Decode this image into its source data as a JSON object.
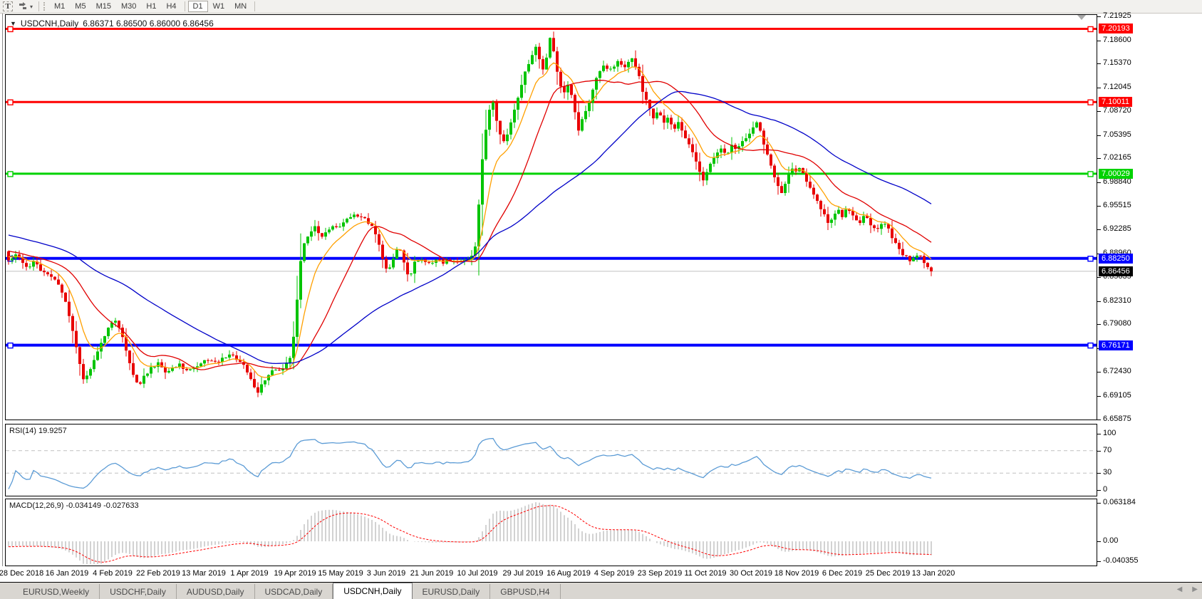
{
  "toolbar": {
    "text_tool_label": "T",
    "timeframes": [
      "M1",
      "M5",
      "M15",
      "M30",
      "H1",
      "H4",
      "D1",
      "W1",
      "MN"
    ],
    "active_timeframe": "D1"
  },
  "chart": {
    "title": "USDCNH,Daily",
    "ohlc_string": "6.86371 6.86500 6.86000 6.86456",
    "open": "6.86371",
    "high": "6.86500",
    "low": "6.86000",
    "close": "6.86456"
  },
  "rsi_panel": {
    "label": "RSI(14) 19.9257",
    "value": 19.9257,
    "period": 14,
    "axis_labels": [
      "100",
      "70",
      "30",
      "0"
    ],
    "guide_levels": [
      70,
      30
    ],
    "range": [
      0,
      100
    ]
  },
  "macd_panel": {
    "label": "MACD(12,26,9) -0.034149 -0.027633",
    "params": "12,26,9",
    "macd_value": -0.034149,
    "signal_value": -0.027633,
    "axis_labels": [
      "0.063184",
      "0.00",
      "-0.040355"
    ],
    "axis_max": 0.063184,
    "axis_min": -0.040355
  },
  "tabs": {
    "items": [
      "EURUSD,Weekly",
      "USDCHF,Daily",
      "AUDUSD,Daily",
      "USDCAD,Daily",
      "USDCNH,Daily",
      "EURUSD,Daily",
      "GBPUSD,H4"
    ],
    "active": "USDCNH,Daily"
  },
  "chart_data": {
    "type": "candlestick",
    "symbol": "USDCNH",
    "timeframe": "Daily",
    "title": "USDCNH,Daily 6.86371 6.86500 6.86000 6.86456",
    "price_axis_ticks": [
      "7.21925",
      "7.18600",
      "7.15370",
      "7.12045",
      "7.08720",
      "7.05395",
      "7.02165",
      "6.98840",
      "6.95515",
      "6.92285",
      "6.88960",
      "6.85635",
      "6.82310",
      "6.79080",
      "6.75755",
      "6.72430",
      "6.69105",
      "6.65875"
    ],
    "price_range": {
      "top": 7.21925,
      "bottom": 6.65875
    },
    "x_axis_labels": [
      "28 Dec 2018",
      "16 Jan 2019",
      "4 Feb 2019",
      "22 Feb 2019",
      "13 Mar 2019",
      "1 Apr 2019",
      "19 Apr 2019",
      "15 May 2019",
      "3 Jun 2019",
      "21 Jun 2019",
      "10 Jul 2019",
      "29 Jul 2019",
      "16 Aug 2019",
      "4 Sep 2019",
      "23 Sep 2019",
      "11 Oct 2019",
      "30 Oct 2019",
      "18 Nov 2019",
      "6 Dec 2019",
      "25 Dec 2019",
      "13 Jan 2020"
    ],
    "levels": [
      {
        "label": "7.20193",
        "price": 7.20193,
        "color": "#ff0000",
        "width": 3
      },
      {
        "label": "7.10011",
        "price": 7.10011,
        "color": "#ff0000",
        "width": 3
      },
      {
        "label": "7.00029",
        "price": 7.00029,
        "color": "#00d200",
        "width": 3
      },
      {
        "label": "6.88250",
        "price": 6.8825,
        "color": "#0000ff",
        "width": 4
      },
      {
        "label": "6.76171",
        "price": 6.76171,
        "color": "#0000ff",
        "width": 4
      }
    ],
    "current_price": {
      "label": "6.86456",
      "value": 6.86456
    },
    "moving_averages": [
      {
        "name": "fast",
        "type": "ema",
        "period": 9,
        "color": "#ffa000"
      },
      {
        "name": "mid",
        "type": "sma",
        "period": 21,
        "color": "#e00000"
      },
      {
        "name": "slow",
        "type": "sma",
        "period": 55,
        "color": "#0000c8"
      }
    ],
    "colors": {
      "up": "#00c400",
      "down": "#e80000",
      "current_line": "#c0c0c0",
      "rsi_line": "#5b9bd5",
      "macd_hist": "#b4b4b4",
      "macd_signal": "#ff0000",
      "guide_dash": "#c0c0c0"
    },
    "close_path_format": "[x_px, price] anchors of daily closes read from chart",
    "close_path": [
      [
        10,
        6.88
      ],
      [
        22,
        6.89
      ],
      [
        34,
        6.868
      ],
      [
        46,
        6.878
      ],
      [
        58,
        6.862
      ],
      [
        70,
        6.858
      ],
      [
        82,
        6.842
      ],
      [
        92,
        6.815
      ],
      [
        100,
        6.782
      ],
      [
        108,
        6.745
      ],
      [
        116,
        6.712
      ],
      [
        124,
        6.728
      ],
      [
        132,
        6.748
      ],
      [
        142,
        6.768
      ],
      [
        152,
        6.79
      ],
      [
        160,
        6.796
      ],
      [
        168,
        6.778
      ],
      [
        176,
        6.752
      ],
      [
        184,
        6.722
      ],
      [
        192,
        6.705
      ],
      [
        200,
        6.718
      ],
      [
        210,
        6.73
      ],
      [
        220,
        6.736
      ],
      [
        230,
        6.722
      ],
      [
        240,
        6.73
      ],
      [
        250,
        6.734
      ],
      [
        258,
        6.726
      ],
      [
        268,
        6.73
      ],
      [
        278,
        6.735
      ],
      [
        288,
        6.742
      ],
      [
        298,
        6.736
      ],
      [
        308,
        6.742
      ],
      [
        318,
        6.748
      ],
      [
        328,
        6.744
      ],
      [
        338,
        6.738
      ],
      [
        346,
        6.724
      ],
      [
        354,
        6.706
      ],
      [
        360,
        6.695
      ],
      [
        368,
        6.712
      ],
      [
        376,
        6.722
      ],
      [
        384,
        6.727
      ],
      [
        392,
        6.729
      ],
      [
        400,
        6.735
      ],
      [
        407,
        6.748
      ],
      [
        413,
        6.8
      ],
      [
        419,
        6.872
      ],
      [
        425,
        6.902
      ],
      [
        432,
        6.915
      ],
      [
        440,
        6.925
      ],
      [
        448,
        6.913
      ],
      [
        456,
        6.92
      ],
      [
        464,
        6.928
      ],
      [
        472,
        6.925
      ],
      [
        480,
        6.934
      ],
      [
        488,
        6.94
      ],
      [
        496,
        6.946
      ],
      [
        504,
        6.94
      ],
      [
        512,
        6.935
      ],
      [
        520,
        6.928
      ],
      [
        528,
        6.908
      ],
      [
        536,
        6.878
      ],
      [
        542,
        6.862
      ],
      [
        550,
        6.884
      ],
      [
        558,
        6.902
      ],
      [
        566,
        6.872
      ],
      [
        572,
        6.856
      ],
      [
        580,
        6.876
      ],
      [
        588,
        6.88
      ],
      [
        596,
        6.875
      ],
      [
        604,
        6.878
      ],
      [
        612,
        6.882
      ],
      [
        620,
        6.877
      ],
      [
        628,
        6.88
      ],
      [
        636,
        6.878
      ],
      [
        644,
        6.881
      ],
      [
        652,
        6.878
      ],
      [
        660,
        6.886
      ],
      [
        666,
        6.9
      ],
      [
        672,
        6.988
      ],
      [
        678,
        7.052
      ],
      [
        684,
        7.085
      ],
      [
        690,
        7.098
      ],
      [
        697,
        7.062
      ],
      [
        704,
        7.042
      ],
      [
        711,
        7.058
      ],
      [
        718,
        7.085
      ],
      [
        725,
        7.108
      ],
      [
        732,
        7.132
      ],
      [
        739,
        7.152
      ],
      [
        746,
        7.168
      ],
      [
        752,
        7.178
      ],
      [
        758,
        7.142
      ],
      [
        764,
        7.158
      ],
      [
        770,
        7.19
      ],
      [
        776,
        7.165
      ],
      [
        782,
        7.128
      ],
      [
        789,
        7.112
      ],
      [
        796,
        7.124
      ],
      [
        803,
        7.098
      ],
      [
        810,
        7.062
      ],
      [
        817,
        7.08
      ],
      [
        824,
        7.098
      ],
      [
        831,
        7.118
      ],
      [
        838,
        7.142
      ],
      [
        845,
        7.152
      ],
      [
        852,
        7.142
      ],
      [
        859,
        7.15
      ],
      [
        866,
        7.158
      ],
      [
        873,
        7.148
      ],
      [
        880,
        7.156
      ],
      [
        887,
        7.16
      ],
      [
        894,
        7.138
      ],
      [
        901,
        7.112
      ],
      [
        908,
        7.096
      ],
      [
        915,
        7.078
      ],
      [
        922,
        7.088
      ],
      [
        929,
        7.068
      ],
      [
        936,
        7.078
      ],
      [
        943,
        7.062
      ],
      [
        950,
        7.07
      ],
      [
        957,
        7.056
      ],
      [
        964,
        7.044
      ],
      [
        971,
        7.03
      ],
      [
        978,
        7.008
      ],
      [
        984,
        6.988
      ],
      [
        990,
        7.004
      ],
      [
        997,
        7.016
      ],
      [
        1004,
        7.028
      ],
      [
        1011,
        7.036
      ],
      [
        1018,
        7.028
      ],
      [
        1025,
        7.04
      ],
      [
        1032,
        7.034
      ],
      [
        1039,
        7.046
      ],
      [
        1046,
        7.052
      ],
      [
        1053,
        7.06
      ],
      [
        1060,
        7.072
      ],
      [
        1066,
        7.056
      ],
      [
        1072,
        7.036
      ],
      [
        1078,
        7.018
      ],
      [
        1084,
        7.0
      ],
      [
        1090,
        6.984
      ],
      [
        1096,
        6.97
      ],
      [
        1102,
        6.992
      ],
      [
        1108,
        7.008
      ],
      [
        1114,
        7.0
      ],
      [
        1120,
        7.008
      ],
      [
        1126,
        6.998
      ],
      [
        1132,
        6.988
      ],
      [
        1138,
        6.976
      ],
      [
        1144,
        6.964
      ],
      [
        1150,
        6.952
      ],
      [
        1156,
        6.942
      ],
      [
        1162,
        6.93
      ],
      [
        1168,
        6.944
      ],
      [
        1174,
        6.95
      ],
      [
        1180,
        6.94
      ],
      [
        1186,
        6.952
      ],
      [
        1192,
        6.946
      ],
      [
        1198,
        6.936
      ],
      [
        1204,
        6.928
      ],
      [
        1210,
        6.94
      ],
      [
        1216,
        6.936
      ],
      [
        1222,
        6.928
      ],
      [
        1228,
        6.92
      ],
      [
        1234,
        6.928
      ],
      [
        1240,
        6.932
      ],
      [
        1246,
        6.922
      ],
      [
        1252,
        6.908
      ],
      [
        1258,
        6.898
      ],
      [
        1264,
        6.89
      ],
      [
        1270,
        6.884
      ],
      [
        1276,
        6.876
      ],
      [
        1282,
        6.884
      ],
      [
        1288,
        6.89
      ],
      [
        1294,
        6.878
      ],
      [
        1300,
        6.87
      ],
      [
        1305,
        6.8646
      ]
    ]
  }
}
